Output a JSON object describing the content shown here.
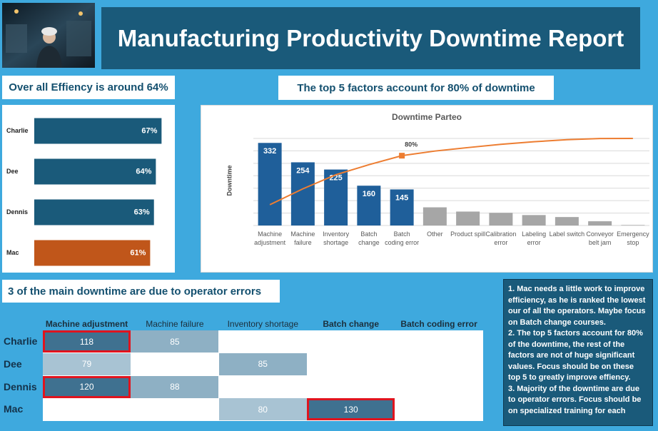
{
  "header": {
    "title": "Manufacturing Productivity Downtime Report"
  },
  "efficiency_heading": "Over all Effiency is around 64%",
  "pareto_heading": "The top 5 factors account for 80% of downtime",
  "operator_heading": "3 of the main downtime are due to operator errors",
  "chart_data": [
    {
      "type": "hbar",
      "categories": [
        "Charlie",
        "Dee",
        "Dennis",
        "Mac"
      ],
      "values": [
        67,
        64,
        63,
        61
      ],
      "value_labels": [
        "67%",
        "64%",
        "63%",
        "61%"
      ],
      "colors": [
        "#1a5a7a",
        "#1a5a7a",
        "#1a5a7a",
        "#c0561a"
      ],
      "xlim": [
        0,
        74
      ]
    },
    {
      "type": "pareto",
      "title": "Downtime Parteo",
      "y_label": "Downtime",
      "categories": [
        "Machine adjustment",
        "Machine failure",
        "Inventory shortage",
        "Batch change",
        "Batch coding error",
        "Other",
        "Product spill",
        "Calibration error",
        "Labeling error",
        "Label switch",
        "Conveyor belt jam",
        "Emergency stop"
      ],
      "series": [
        {
          "type": "bar",
          "values": [
            332,
            254,
            225,
            160,
            145,
            73,
            56,
            51,
            42,
            34,
            17,
            2
          ],
          "colors": [
            "#1f5f9a",
            "#1f5f9a",
            "#1f5f9a",
            "#1f5f9a",
            "#1f5f9a",
            "#a6a6a6",
            "#a6a6a6",
            "#a6a6a6",
            "#a6a6a6",
            "#a6a6a6",
            "#a6a6a6",
            "#a6a6a6"
          ],
          "show_value_labels": [
            true,
            true,
            true,
            true,
            true,
            false,
            false,
            false,
            false,
            false,
            false,
            false
          ]
        },
        {
          "type": "line",
          "axis": "y2",
          "color": "#ed7d31",
          "values": [
            23.9,
            42.1,
            58.3,
            69.8,
            80.2,
            85.5,
            89.5,
            93.2,
            96.2,
            98.6,
            99.9,
            100
          ],
          "value_labels": [
            null,
            null,
            null,
            null,
            "80%",
            null,
            null,
            null,
            null,
            null,
            null,
            null
          ]
        }
      ],
      "ylim": [
        0,
        350
      ],
      "yticks": [
        0,
        50,
        100,
        150,
        200,
        250,
        300,
        350
      ],
      "y2lim": [
        0,
        100
      ],
      "grid": true
    }
  ],
  "table": {
    "columns": [
      "Machine adjustment",
      "Machine failure",
      "Inventory shortage",
      "Batch change",
      "Batch coding error"
    ],
    "bold_columns": [
      true,
      false,
      false,
      true,
      true
    ],
    "rows": [
      {
        "label": "Charlie",
        "cells": [
          118,
          85,
          null,
          null,
          null
        ],
        "highlight": [
          true,
          false,
          false,
          false,
          false
        ]
      },
      {
        "label": "Dee",
        "cells": [
          79,
          null,
          85,
          null,
          null
        ],
        "highlight": [
          false,
          false,
          false,
          false,
          false
        ]
      },
      {
        "label": "Dennis",
        "cells": [
          120,
          88,
          null,
          null,
          null
        ],
        "highlight": [
          true,
          false,
          false,
          false,
          false
        ]
      },
      {
        "label": "Mac",
        "cells": [
          null,
          null,
          80,
          130,
          null
        ],
        "highlight": [
          false,
          false,
          false,
          true,
          false
        ]
      }
    ],
    "color_scale": [
      [
        100,
        "#3f7190"
      ],
      [
        84,
        "#8eb0c4"
      ],
      [
        0,
        "#a8c3d3"
      ]
    ]
  },
  "notes": [
    "1. Mac needs a little work to improve efficiency, as he is ranked the lowest our of all the operators. Maybe focus on Batch change courses.",
    "2. The top 5 factors account for 80% of the downtime, the rest of the factors are not of huge significant values. Focus should be on these top 5 to  greatly improve effiency.",
    "3. Majority of the downtime are due to operator errors. Focus should be on specialized training for each"
  ]
}
